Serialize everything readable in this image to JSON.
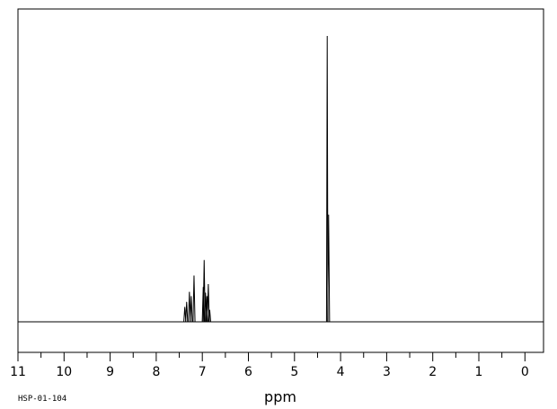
{
  "chart_data": {
    "type": "line",
    "title": "",
    "xlabel": "ppm",
    "ylabel": "",
    "x_reversed": true,
    "xlim": [
      11,
      0
    ],
    "ylim": [
      0,
      100
    ],
    "x_ticks": [
      11,
      10,
      9,
      8,
      7,
      6,
      5,
      4,
      3,
      2,
      1,
      0
    ],
    "x_tick_labels": [
      "11",
      "10",
      "9",
      "8",
      "7",
      "6",
      "5",
      "4",
      "3",
      "2",
      "1",
      "0"
    ],
    "grid": false,
    "legend": "none",
    "line_color": "#000000",
    "peaks": [
      {
        "ppm": 7.38,
        "intensity": 5.2
      },
      {
        "ppm": 7.34,
        "intensity": 7.0
      },
      {
        "ppm": 7.28,
        "intensity": 10.5
      },
      {
        "ppm": 7.24,
        "intensity": 9.0
      },
      {
        "ppm": 7.18,
        "intensity": 16.2
      },
      {
        "ppm": 6.98,
        "intensity": 12.2
      },
      {
        "ppm": 6.96,
        "intensity": 21.6
      },
      {
        "ppm": 6.93,
        "intensity": 10.2
      },
      {
        "ppm": 6.9,
        "intensity": 9.0
      },
      {
        "ppm": 6.87,
        "intensity": 13.2
      },
      {
        "ppm": 6.84,
        "intensity": 4.2
      },
      {
        "ppm": 4.29,
        "intensity": 100.0
      },
      {
        "ppm": 4.26,
        "intensity": 37.5
      }
    ]
  },
  "footer": {
    "code": "HSP-01-104"
  }
}
